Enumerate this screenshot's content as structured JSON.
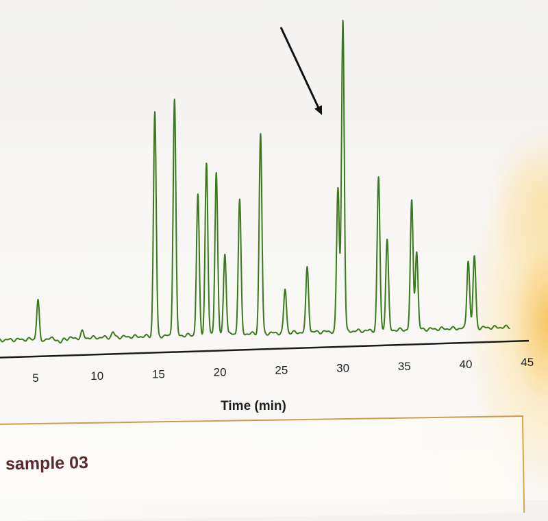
{
  "chart_data": {
    "type": "line",
    "title": "",
    "xlabel": "Time (min)",
    "ylabel": "",
    "xlim": [
      2,
      45
    ],
    "ylim": [
      0,
      100
    ],
    "grid": false,
    "xticks": [
      5,
      10,
      15,
      20,
      25,
      30,
      35,
      40,
      45
    ],
    "x_tick_labels": [
      "5",
      "10",
      "15",
      "20",
      "25",
      "30",
      "35",
      "40",
      "45"
    ],
    "series": [
      {
        "color": "#3a7a1c",
        "baseline": 0.5,
        "peaks": [
          {
            "x": 5.2,
            "y": 14
          },
          {
            "x": 8.8,
            "y": 2
          },
          {
            "x": 11.3,
            "y": 1.5
          },
          {
            "x": 14.7,
            "y": 72
          },
          {
            "x": 16.3,
            "y": 76
          },
          {
            "x": 18.2,
            "y": 45
          },
          {
            "x": 18.9,
            "y": 55
          },
          {
            "x": 19.7,
            "y": 52
          },
          {
            "x": 20.4,
            "y": 26
          },
          {
            "x": 21.6,
            "y": 43
          },
          {
            "x": 23.3,
            "y": 64
          },
          {
            "x": 25.3,
            "y": 14
          },
          {
            "x": 27.1,
            "y": 21
          },
          {
            "x": 29.6,
            "y": 46
          },
          {
            "x": 30.0,
            "y": 100
          },
          {
            "x": 32.9,
            "y": 49
          },
          {
            "x": 33.6,
            "y": 29
          },
          {
            "x": 35.6,
            "y": 41
          },
          {
            "x": 36.0,
            "y": 25
          },
          {
            "x": 40.2,
            "y": 22
          },
          {
            "x": 40.7,
            "y": 23
          }
        ],
        "dips": [
          {
            "x": 5.35,
            "y": -2
          },
          {
            "x": 7.0,
            "y": -1.5
          }
        ]
      }
    ],
    "annotations": [
      {
        "type": "arrow",
        "color": "#111111",
        "target_x": 28.3,
        "target_y": 70
      }
    ]
  },
  "sample": {
    "label": "sample 03"
  }
}
